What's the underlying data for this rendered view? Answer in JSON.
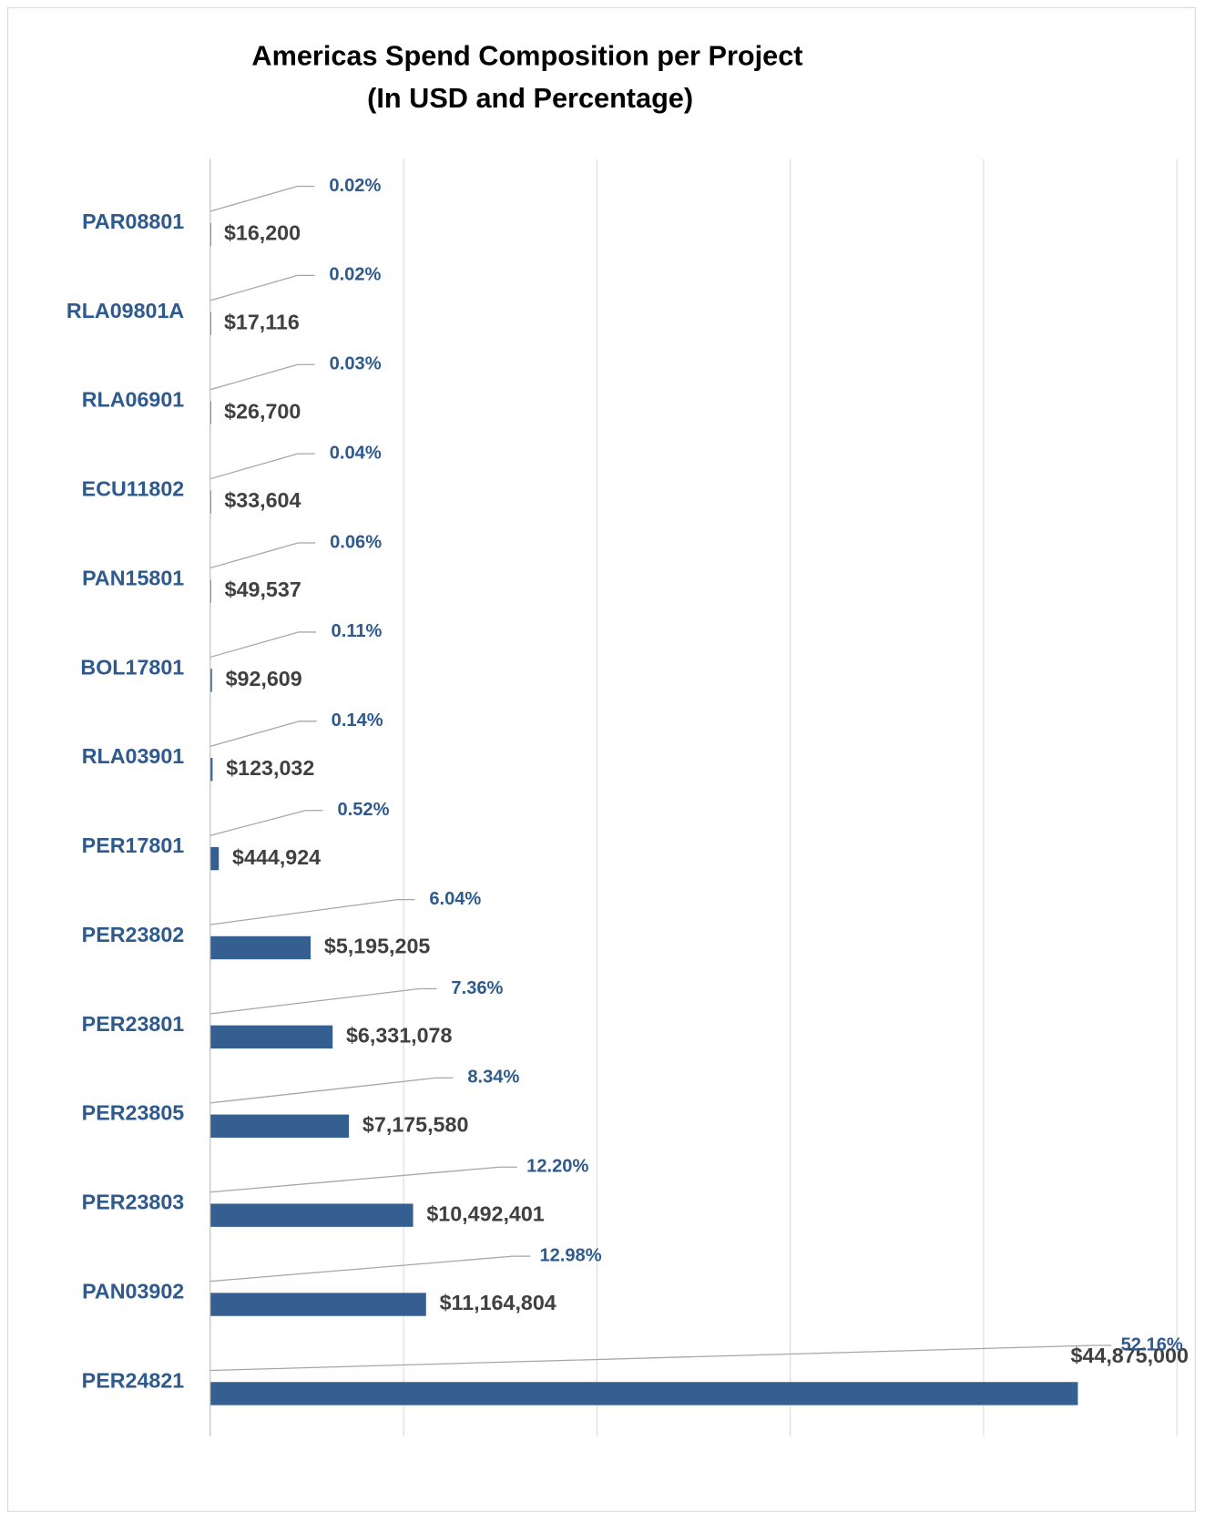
{
  "chart_data": {
    "type": "barh",
    "title": "Americas Spend Composition per Project",
    "subtitle": "(In USD and Percentage)",
    "categories": [
      "PAR08801",
      "RLA09801A",
      "RLA06901",
      "ECU11802",
      "PAN15801",
      "BOL17801",
      "RLA03901",
      "PER17801",
      "PER23802",
      "PER23801",
      "PER23805",
      "PER23803",
      "PAN03902",
      "PER24821"
    ],
    "values": [
      16200,
      17116,
      26700,
      33604,
      49537,
      92609,
      123032,
      444924,
      5195205,
      6331078,
      7175580,
      10492401,
      11164804,
      44875000
    ],
    "value_labels": [
      "$16,200",
      "$17,116",
      "$26,700",
      "$33,604",
      "$49,537",
      "$92,609",
      "$123,032",
      "$444,924",
      "$5,195,205",
      "$6,331,078",
      "$7,175,580",
      "$10,492,401",
      "$11,164,804",
      "$44,875,000"
    ],
    "percent_values": [
      0.02,
      0.02,
      0.03,
      0.04,
      0.06,
      0.11,
      0.14,
      0.52,
      6.04,
      7.36,
      8.34,
      12.2,
      12.98,
      52.16
    ],
    "percent_labels": [
      "0.02%",
      "0.02%",
      "0.03%",
      "0.04%",
      "0.06%",
      "0.11%",
      "0.14%",
      "0.52%",
      "6.04%",
      "7.36%",
      "8.34%",
      "12.20%",
      "12.98%",
      "52.16%"
    ],
    "color": "#365f91",
    "xlim": [
      0,
      50000000
    ],
    "xticks": [
      0,
      10000000,
      20000000,
      30000000,
      40000000,
      50000000
    ],
    "grid": true
  }
}
